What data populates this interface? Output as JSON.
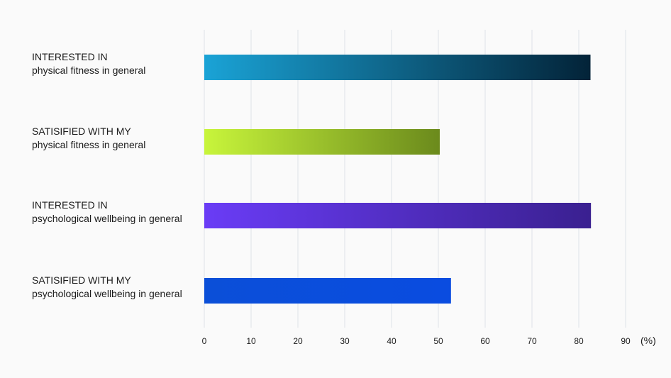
{
  "chart_data": {
    "type": "bar",
    "orientation": "horizontal",
    "categories": [
      [
        "INTERESTED IN",
        "physical fitness in general"
      ],
      [
        "SATISIFIED WITH MY",
        "physical fitness in general"
      ],
      [
        "INTERESTED IN",
        "psychological wellbeing in general"
      ],
      [
        "SATISIFIED WITH MY",
        "psychological wellbeing in general"
      ]
    ],
    "values": [
      82.5,
      50.3,
      82.6,
      52.7
    ],
    "colors": [
      [
        "#1aa3d6",
        "#032338"
      ],
      [
        "#c8f53b",
        "#6b8a1c"
      ],
      [
        "#6a3cf6",
        "#3a2090"
      ],
      [
        "#0b4fd8",
        "#0a4ce0"
      ]
    ],
    "xlim": [
      0,
      90
    ],
    "xticks": [
      0,
      10,
      20,
      30,
      40,
      50,
      60,
      70,
      80,
      90
    ],
    "unit_label": "(%)",
    "grid": true,
    "title": "",
    "xlabel": "",
    "ylabel": ""
  }
}
